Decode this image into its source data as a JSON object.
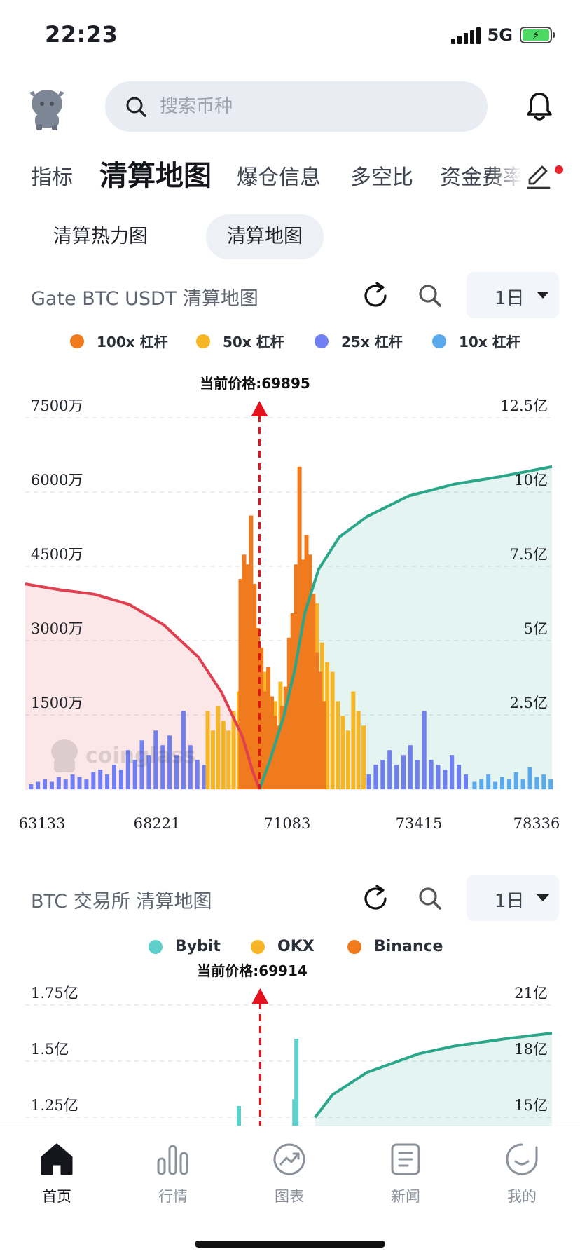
{
  "status_bar": {
    "time": "22:23",
    "network": "5G",
    "battery_icon": "battery-charging-icon",
    "signal_icon": "signal-bars-icon"
  },
  "header": {
    "avatar_icon": "cow-mascot-icon",
    "search_placeholder": "搜索币种",
    "search_icon": "search-icon",
    "bell_icon": "bell-icon"
  },
  "main_tabs": [
    "指标",
    "清算地图",
    "爆仓信息",
    "多空比",
    "资金费率"
  ],
  "main_tabs_active": "清算地图",
  "sub_tabs": [
    "清算热力图",
    "清算地图"
  ],
  "sub_tabs_active": "清算地图",
  "chart1": {
    "title": "Gate BTC USDT 清算地图",
    "period": "1日",
    "legend": [
      {
        "name": "100x 杠杆",
        "color": "#f07a1e"
      },
      {
        "name": "50x 杠杆",
        "color": "#f6b524"
      },
      {
        "name": "25x 杠杆",
        "color": "#6f7ef0"
      },
      {
        "name": "10x 杠杆",
        "color": "#5aa9ec"
      }
    ],
    "current_price_label": "当前价格:69895",
    "watermark": "coinglass"
  },
  "chart2": {
    "title": "BTC 交易所 清算地图",
    "period": "1日",
    "legend": [
      {
        "name": "Bybit",
        "color": "#5ecfcb"
      },
      {
        "name": "OKX",
        "color": "#f6b524"
      },
      {
        "name": "Binance",
        "color": "#f07a1e"
      }
    ],
    "current_price_label": "当前价格:69914"
  },
  "chart_data": [
    {
      "type": "bar",
      "title": "",
      "exchange": "Gate",
      "pair": "BTC USDT",
      "x_ticks": [
        "63133",
        "68221",
        "71083",
        "73415",
        "78336"
      ],
      "x_range": [
        63133,
        78336
      ],
      "y_left_ticks": [
        "1500万",
        "3000万",
        "4500万",
        "6000万",
        "7500万"
      ],
      "y_left_range": [
        0,
        75000000
      ],
      "y_right_ticks": [
        "2.5亿",
        "5亿",
        "7.5亿",
        "10亿",
        "12.5亿"
      ],
      "y_right_range": [
        0,
        1250000000
      ],
      "current_price": 69895,
      "grid": true,
      "series": [
        {
          "name": "25x 杠杆",
          "color": "#6f7ef0",
          "points": [
            [
              63300,
              1000000
            ],
            [
              63500,
              1500000
            ],
            [
              63700,
              2000000
            ],
            [
              63900,
              1500000
            ],
            [
              64100,
              2500000
            ],
            [
              64300,
              2000000
            ],
            [
              64500,
              3000000
            ],
            [
              64700,
              2500000
            ],
            [
              64900,
              2000000
            ],
            [
              65100,
              3500000
            ],
            [
              65300,
              4000000
            ],
            [
              65500,
              3000000
            ],
            [
              65700,
              5000000
            ],
            [
              65900,
              4000000
            ],
            [
              66100,
              8000000
            ],
            [
              66300,
              6000000
            ],
            [
              66500,
              10000000
            ],
            [
              66700,
              7000000
            ],
            [
              66900,
              12000000
            ],
            [
              67100,
              9000000
            ],
            [
              67300,
              11000000
            ],
            [
              67500,
              7000000
            ],
            [
              67700,
              16000000
            ],
            [
              67900,
              9000000
            ],
            [
              68100,
              6000000
            ],
            [
              68300,
              5000000
            ],
            [
              73050,
              3000000
            ],
            [
              73250,
              5000000
            ],
            [
              73450,
              6000000
            ],
            [
              73650,
              8000000
            ],
            [
              73850,
              5000000
            ],
            [
              74050,
              7000000
            ],
            [
              74250,
              9000000
            ],
            [
              74450,
              6000000
            ],
            [
              74650,
              16000000
            ],
            [
              74850,
              6000000
            ],
            [
              75050,
              5000000
            ],
            [
              75250,
              4000000
            ],
            [
              75450,
              7000000
            ],
            [
              75650,
              5000000
            ],
            [
              75850,
              3000000
            ]
          ]
        },
        {
          "name": "10x 杠杆",
          "color": "#5aa9ec",
          "points": [
            [
              76100,
              1500000
            ],
            [
              76300,
              2000000
            ],
            [
              76500,
              3000000
            ],
            [
              76700,
              1500000
            ],
            [
              76900,
              2500000
            ],
            [
              77100,
              2000000
            ],
            [
              77300,
              3500000
            ],
            [
              77500,
              2000000
            ],
            [
              77700,
              4500000
            ],
            [
              77900,
              2500000
            ],
            [
              78100,
              3000000
            ],
            [
              78300,
              2000000
            ]
          ]
        },
        {
          "name": "50x 杠杆",
          "color": "#f6b524",
          "points": [
            [
              68400,
              16000000
            ],
            [
              68550,
              12000000
            ],
            [
              68700,
              17000000
            ],
            [
              68850,
              14000000
            ],
            [
              69000,
              12000000
            ],
            [
              69150,
              16000000
            ],
            [
              69300,
              20000000
            ],
            [
              69450,
              12000000
            ],
            [
              69600,
              18000000
            ],
            [
              69750,
              16000000
            ],
            [
              70050,
              24000000
            ],
            [
              70200,
              14000000
            ],
            [
              70350,
              18000000
            ],
            [
              70500,
              22000000
            ],
            [
              70650,
              20000000
            ],
            [
              70800,
              28000000
            ],
            [
              70950,
              24000000
            ],
            [
              71100,
              30000000
            ],
            [
              71250,
              34000000
            ],
            [
              71400,
              28000000
            ],
            [
              71550,
              38000000
            ],
            [
              71700,
              30000000
            ],
            [
              71850,
              26000000
            ],
            [
              72000,
              24000000
            ],
            [
              72150,
              18000000
            ],
            [
              72300,
              15000000
            ],
            [
              72450,
              12000000
            ],
            [
              72600,
              20000000
            ],
            [
              72750,
              16000000
            ],
            [
              72900,
              13000000
            ]
          ]
        },
        {
          "name": "100x 杠杆",
          "color": "#f07a1e",
          "points": [
            [
              69350,
              43000000
            ],
            [
              69450,
              48000000
            ],
            [
              69550,
              46000000
            ],
            [
              69650,
              56000000
            ],
            [
              69750,
              42000000
            ],
            [
              69850,
              33000000
            ],
            [
              69950,
              29000000
            ],
            [
              70050,
              20000000
            ],
            [
              70150,
              25000000
            ],
            [
              70250,
              19000000
            ],
            [
              70350,
              15000000
            ],
            [
              70450,
              13000000
            ],
            [
              70550,
              17000000
            ],
            [
              70650,
              21000000
            ],
            [
              70750,
              31000000
            ],
            [
              70850,
              36000000
            ],
            [
              70950,
              46000000
            ],
            [
              71050,
              66000000
            ],
            [
              71150,
              47000000
            ],
            [
              71250,
              52000000
            ],
            [
              71350,
              48000000
            ],
            [
              71450,
              40000000
            ],
            [
              71550,
              28000000
            ],
            [
              71650,
              24000000
            ],
            [
              71750,
              18000000
            ]
          ]
        }
      ],
      "cumulative_series": [
        {
          "name": "short_side",
          "color": "#e0404f",
          "points": [
            [
              63133,
              700000000
            ],
            [
              64133,
              680000000
            ],
            [
              65133,
              665000000
            ],
            [
              66133,
              630000000
            ],
            [
              67133,
              560000000
            ],
            [
              68133,
              450000000
            ],
            [
              68800,
              330000000
            ],
            [
              69400,
              180000000
            ],
            [
              69700,
              60000000
            ],
            [
              69895,
              0
            ]
          ]
        },
        {
          "name": "long_side",
          "color": "#2aa68a",
          "points": [
            [
              69895,
              0
            ],
            [
              70200,
              100000000
            ],
            [
              70600,
              250000000
            ],
            [
              70900,
              400000000
            ],
            [
              71200,
              600000000
            ],
            [
              71600,
              750000000
            ],
            [
              72200,
              860000000
            ],
            [
              73000,
              930000000
            ],
            [
              74200,
              1000000000
            ],
            [
              75500,
              1040000000
            ],
            [
              76800,
              1065000000
            ],
            [
              78336,
              1100000000
            ]
          ]
        }
      ]
    },
    {
      "type": "bar",
      "title": "",
      "pair": "BTC",
      "y_left_ticks": [
        "1.25亿",
        "1.5亿",
        "1.75亿"
      ],
      "y_left_range": [
        0,
        175000000
      ],
      "y_right_ticks": [
        "15亿",
        "18亿",
        "21亿"
      ],
      "y_right_range": [
        0,
        2100000000
      ],
      "current_price": 69914,
      "grid": true,
      "series": [
        {
          "name": "Bybit",
          "color": "#5ecfcb",
          "points": [
            [
              69300,
              130000000
            ],
            [
              70900,
              133000000
            ],
            [
              70960,
              160000000
            ]
          ]
        }
      ],
      "cumulative_series": [
        {
          "name": "long_side",
          "color": "#2aa68a",
          "points": [
            [
              71500,
              1500000000
            ],
            [
              72000,
              1620000000
            ],
            [
              73000,
              1740000000
            ],
            [
              74500,
              1840000000
            ],
            [
              75500,
              1880000000
            ],
            [
              77000,
              1920000000
            ],
            [
              78336,
              1950000000
            ]
          ]
        }
      ]
    }
  ],
  "bottom_nav": [
    {
      "label": "首页",
      "icon": "home-icon",
      "active": true
    },
    {
      "label": "行情",
      "icon": "market-bars-icon",
      "active": false
    },
    {
      "label": "图表",
      "icon": "chart-circle-icon",
      "active": false
    },
    {
      "label": "新闻",
      "icon": "news-icon",
      "active": false
    },
    {
      "label": "我的",
      "icon": "profile-smile-icon",
      "active": false
    }
  ]
}
